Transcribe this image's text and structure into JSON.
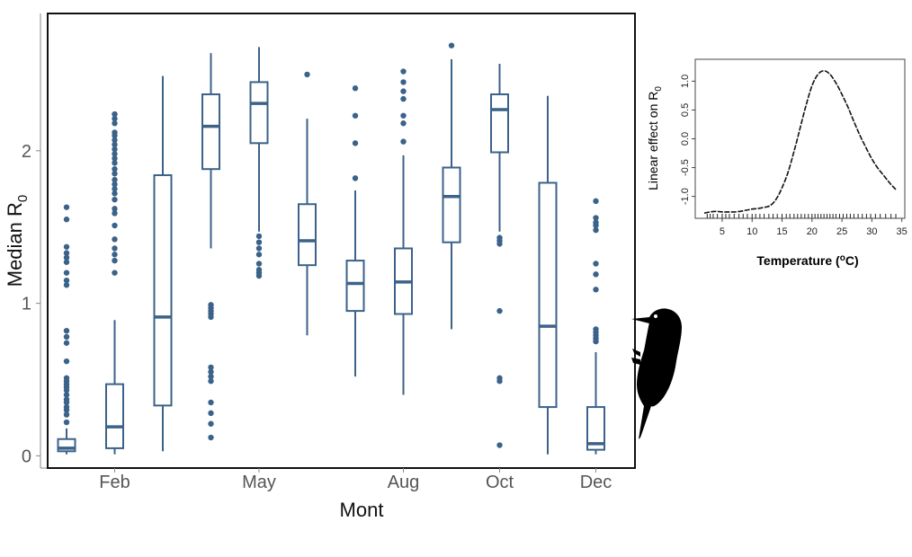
{
  "chart_data": [
    {
      "type": "box",
      "title": "",
      "xlabel": "Mont",
      "ylabel": "Median R",
      "ylabel_subscript": "0",
      "ylim": [
        -0.08,
        2.9
      ],
      "y_ticks": [
        0,
        1,
        2
      ],
      "y_tick_labels": [
        "0",
        "1",
        "2"
      ],
      "x_tick_labels": [
        {
          "label": "Feb",
          "month_index": 2
        },
        {
          "label": "May",
          "month_index": 5
        },
        {
          "label": "Aug",
          "month_index": 8
        },
        {
          "label": "Oct",
          "month_index": 10
        },
        {
          "label": "Dec",
          "month_index": 12
        }
      ],
      "color": "#3b6288",
      "boxes": [
        {
          "month": 1,
          "wl": 0.01,
          "q1": 0.03,
          "median": 0.05,
          "q3": 0.11,
          "wh": 0.18,
          "outliers": [
            1.63,
            1.55,
            1.37,
            1.33,
            1.3,
            1.27,
            1.2,
            1.15,
            1.12,
            0.82,
            0.78,
            0.74,
            0.62,
            0.51,
            0.49,
            0.47,
            0.45,
            0.43,
            0.4,
            0.37,
            0.35,
            0.32,
            0.3,
            0.27,
            0.22
          ]
        },
        {
          "month": 2,
          "wl": 0.01,
          "q1": 0.05,
          "median": 0.19,
          "q3": 0.47,
          "wh": 0.89,
          "outliers": [
            2.24,
            2.21,
            2.18,
            2.12,
            2.1,
            2.07,
            2.04,
            2.01,
            1.98,
            1.95,
            1.92,
            1.88,
            1.85,
            1.81,
            1.78,
            1.75,
            1.72,
            1.68,
            1.62,
            1.59,
            1.51,
            1.42,
            1.36,
            1.32,
            1.28,
            1.2
          ]
        },
        {
          "month": 3,
          "wl": 0.03,
          "q1": 0.33,
          "median": 0.91,
          "q3": 1.84,
          "wh": 2.49,
          "outliers": []
        },
        {
          "month": 4,
          "wl": 1.36,
          "q1": 1.88,
          "median": 2.16,
          "q3": 2.37,
          "wh": 2.64,
          "outliers": [
            0.99,
            0.97,
            0.95,
            0.93,
            0.91,
            0.58,
            0.55,
            0.52,
            0.49,
            0.35,
            0.28,
            0.21,
            0.12
          ]
        },
        {
          "month": 5,
          "wl": 1.47,
          "q1": 2.05,
          "median": 2.31,
          "q3": 2.45,
          "wh": 2.68,
          "outliers": [
            1.44,
            1.4,
            1.36,
            1.32,
            1.26,
            1.22,
            1.2,
            1.18
          ]
        },
        {
          "month": 6,
          "wl": 0.79,
          "q1": 1.25,
          "median": 1.41,
          "q3": 1.65,
          "wh": 2.21,
          "outliers": [
            2.5
          ]
        },
        {
          "month": 7,
          "wl": 0.52,
          "q1": 0.95,
          "median": 1.13,
          "q3": 1.28,
          "wh": 1.74,
          "outliers": [
            2.41,
            2.23,
            2.05,
            1.82
          ]
        },
        {
          "month": 8,
          "wl": 0.4,
          "q1": 0.93,
          "median": 1.14,
          "q3": 1.36,
          "wh": 1.97,
          "outliers": [
            2.52,
            2.45,
            2.39,
            2.34,
            2.23,
            2.18,
            2.06
          ]
        },
        {
          "month": 9,
          "wl": 0.83,
          "q1": 1.4,
          "median": 1.7,
          "q3": 1.89,
          "wh": 2.6,
          "outliers": [
            2.69
          ]
        },
        {
          "month": 10,
          "wl": 1.47,
          "q1": 1.99,
          "median": 2.27,
          "q3": 2.37,
          "wh": 2.57,
          "outliers": [
            1.43,
            1.41,
            1.39,
            0.95,
            0.51,
            0.49,
            0.07
          ]
        },
        {
          "month": 11,
          "wl": 0.01,
          "q1": 0.32,
          "median": 0.85,
          "q3": 1.79,
          "wh": 2.36,
          "outliers": []
        },
        {
          "month": 12,
          "wl": 0.01,
          "q1": 0.04,
          "median": 0.08,
          "q3": 0.32,
          "wh": 0.68,
          "outliers": [
            1.67,
            1.56,
            1.53,
            1.51,
            1.48,
            1.26,
            1.19,
            1.09,
            0.83,
            0.81,
            0.79,
            0.77,
            0.75
          ]
        }
      ]
    },
    {
      "type": "line",
      "title": "",
      "xlabel": "Temperature (oC)",
      "xlabel_parts": [
        "Temperature (",
        "o",
        "C)"
      ],
      "ylabel": "Linear effect on R",
      "ylabel_subscript": "0",
      "xlim": [
        0.5,
        35.5
      ],
      "ylim": [
        -1.38,
        1.38
      ],
      "x_ticks": [
        5,
        10,
        15,
        20,
        25,
        30,
        35
      ],
      "x_tick_labels": [
        "5",
        "10",
        "15",
        "20",
        "25",
        "30",
        "35"
      ],
      "y_ticks": [
        -1.0,
        -0.5,
        0.0,
        0.5,
        1.0
      ],
      "y_tick_labels": [
        "-1.0",
        "-0.5",
        "0.0",
        "0.5",
        "1.0"
      ],
      "x": [
        2,
        3,
        4,
        5,
        6,
        7,
        8,
        9,
        10,
        11,
        12,
        13,
        14,
        15,
        16,
        17,
        18,
        19,
        20,
        21,
        22,
        23,
        24,
        25,
        26,
        27,
        28,
        29,
        30,
        31,
        32,
        33,
        34
      ],
      "y": [
        -1.29,
        -1.27,
        -1.26,
        -1.27,
        -1.27,
        -1.27,
        -1.26,
        -1.24,
        -1.22,
        -1.21,
        -1.19,
        -1.16,
        -1.05,
        -0.85,
        -0.58,
        -0.22,
        0.18,
        0.58,
        0.92,
        1.12,
        1.18,
        1.12,
        0.97,
        0.77,
        0.55,
        0.3,
        0.06,
        -0.15,
        -0.35,
        -0.51,
        -0.64,
        -0.77,
        -0.88
      ],
      "rug": [
        2.5,
        3,
        3.5,
        4.2,
        5,
        5.6,
        6.2,
        7,
        7.8,
        8.5,
        9.2,
        10,
        10.6,
        11.3,
        12,
        12.8,
        13.5,
        14.2,
        15,
        15.7,
        16.3,
        17,
        17.6,
        18.2,
        18.8,
        19.4,
        20,
        20.5,
        21,
        21.5,
        22,
        22.5,
        23,
        23.5,
        24,
        24.6,
        25.2,
        25.8,
        26.4,
        27,
        27.7,
        28.4,
        29.1,
        29.8,
        30.6,
        31.4,
        32.3,
        33.2,
        34
      ]
    }
  ]
}
